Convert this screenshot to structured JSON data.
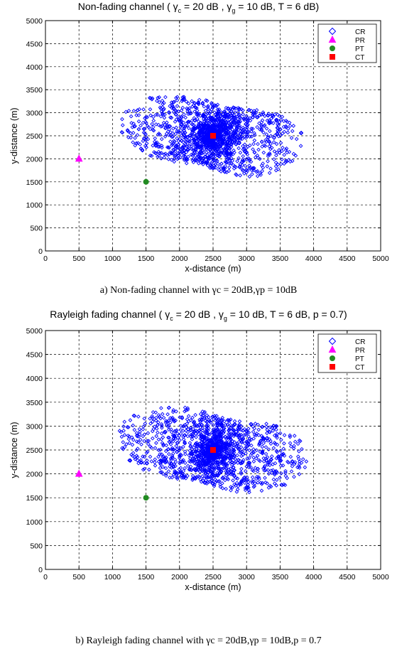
{
  "chart_data": [
    {
      "type": "scatter",
      "title_prefix": "Non-fading channel ( ",
      "title_main": "γ",
      "title_sub1": "c",
      "title_mid": " = 20 dB , γ",
      "title_sub2": "g",
      "title_suffix": " = 10 dB, T = 6 dB)",
      "caption": "a) Non-fading channel with  γc = 20dB,γp = 10dB",
      "xlabel": "x-distance (m)",
      "ylabel": "y-distance (m)",
      "xlim": [
        0,
        5000
      ],
      "ylim": [
        0,
        5000
      ],
      "xticks": [
        "0",
        "500",
        "1000",
        "1500",
        "2000",
        "2500",
        "3000",
        "3500",
        "4000",
        "4500",
        "5000"
      ],
      "yticks": [
        "0",
        "500",
        "1000",
        "1500",
        "2000",
        "2500",
        "3000",
        "3500",
        "4000",
        "4500",
        "5000"
      ],
      "grid": true,
      "legend_position": "top-right",
      "cloud": {
        "cx": 2500,
        "cy": 2500,
        "n": 1400,
        "rmax": 1400,
        "ymin": 1150,
        "ymax": 3950,
        "seed": 7
      },
      "series": [
        {
          "name": "CR",
          "marker": "diamond",
          "color": "#0000ff"
        },
        {
          "name": "PR",
          "marker": "triangle",
          "color": "#ff00ff",
          "x": [
            500
          ],
          "y": [
            2000
          ]
        },
        {
          "name": "PT",
          "marker": "circle",
          "color": "#228b22",
          "x": [
            1500
          ],
          "y": [
            1500
          ]
        },
        {
          "name": "CT",
          "marker": "square",
          "color": "#ff0000",
          "x": [
            2500
          ],
          "y": [
            2500
          ]
        }
      ]
    },
    {
      "type": "scatter",
      "title_prefix": "Rayleigh fading channel ( ",
      "title_main": "γ",
      "title_sub1": "c",
      "title_mid": " = 20 dB , γ",
      "title_sub2": "g",
      "title_suffix": " = 10 dB, T = 6 dB, p = 0.7)",
      "caption": "b) Rayleigh fading channel with  γc = 20dB,γp = 10dB,p = 0.7",
      "xlabel": "x-distance (m)",
      "ylabel": "y-distance (m)",
      "xlim": [
        0,
        5000
      ],
      "ylim": [
        0,
        5000
      ],
      "xticks": [
        "0",
        "500",
        "1000",
        "1500",
        "2000",
        "2500",
        "3000",
        "3500",
        "4000",
        "4500",
        "5000"
      ],
      "yticks": [
        "0",
        "500",
        "1000",
        "1500",
        "2000",
        "2500",
        "3000",
        "3500",
        "4000",
        "4500",
        "5000"
      ],
      "grid": true,
      "legend_position": "top-right",
      "cloud": {
        "cx": 2500,
        "cy": 2500,
        "n": 1400,
        "rmax": 1450,
        "ymin": 1150,
        "ymax": 3950,
        "seed": 13
      },
      "series": [
        {
          "name": "CR",
          "marker": "diamond",
          "color": "#0000ff"
        },
        {
          "name": "PR",
          "marker": "triangle",
          "color": "#ff00ff",
          "x": [
            500
          ],
          "y": [
            2000
          ]
        },
        {
          "name": "PT",
          "marker": "circle",
          "color": "#228b22",
          "x": [
            1500
          ],
          "y": [
            1500
          ]
        },
        {
          "name": "CT",
          "marker": "square",
          "color": "#ff0000",
          "x": [
            2500
          ],
          "y": [
            2500
          ]
        }
      ]
    }
  ]
}
